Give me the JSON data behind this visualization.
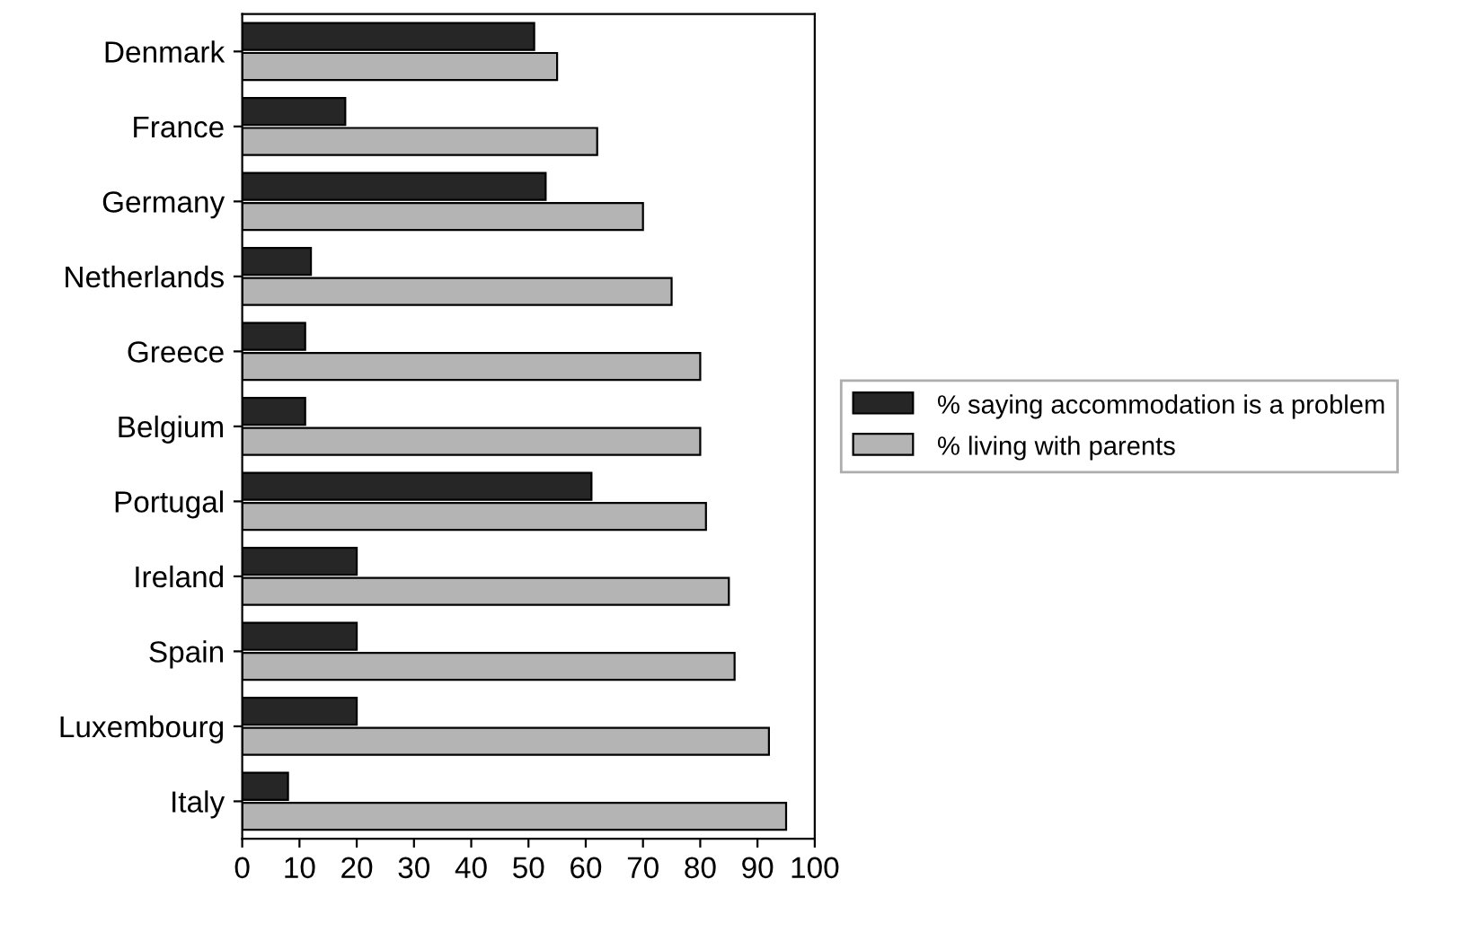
{
  "chart_data": {
    "type": "bar",
    "orientation": "horizontal",
    "categories": [
      "Denmark",
      "France",
      "Germany",
      "Netherlands",
      "Greece",
      "Belgium",
      "Portugal",
      "Ireland",
      "Spain",
      "Luxembourg",
      "Italy"
    ],
    "series": [
      {
        "name": "% saying accommodation is a problem",
        "color": "#262626",
        "values": [
          51,
          18,
          53,
          12,
          11,
          11,
          61,
          20,
          20,
          20,
          8
        ]
      },
      {
        "name": "% living with parents",
        "color": "#b4b4b4",
        "values": [
          55,
          62,
          70,
          75,
          80,
          80,
          81,
          85,
          86,
          92,
          95
        ]
      }
    ],
    "xlim": [
      0,
      100
    ],
    "xticks": [
      0,
      10,
      20,
      30,
      40,
      50,
      60,
      70,
      80,
      90,
      100
    ],
    "grid": false,
    "legend": "right"
  }
}
